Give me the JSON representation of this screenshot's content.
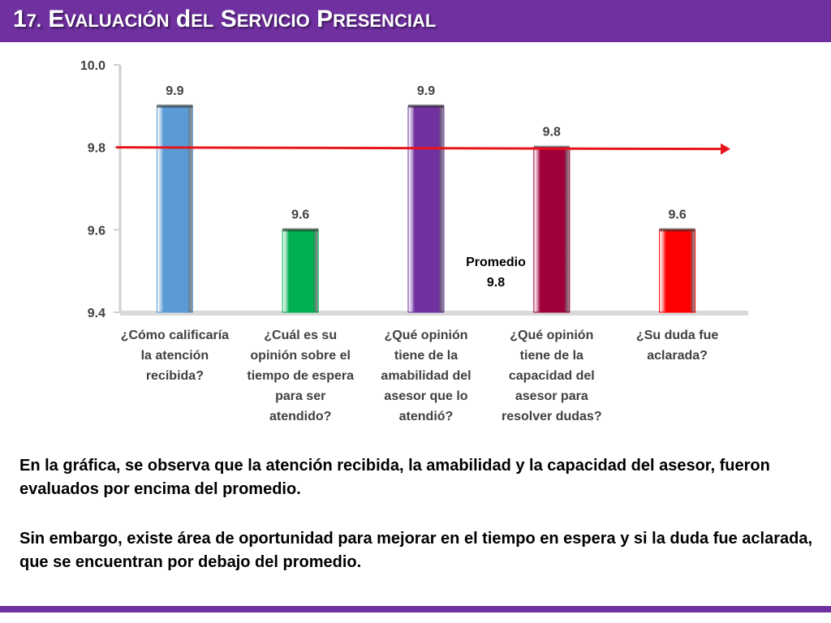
{
  "slide": {
    "title": "17. Evaluación del Servicio Presencial",
    "paragraph1": "En la gráfica, se observa que la atención recibida, la amabilidad y la capacidad del asesor, fueron evaluados por encima del promedio.",
    "paragraph2": "Sin embargo, existe área de oportunidad para mejorar en el tiempo en espera y si la duda fue aclarada, que se encuentran por debajo del promedio."
  },
  "colors": {
    "accent": "#7030a0",
    "average_line": "#e8141c",
    "bars": [
      "#5b9bd5",
      "#00b050",
      "#7030a0",
      "#a0003a",
      "#ff0000"
    ]
  },
  "chart_data": {
    "type": "bar",
    "categories": [
      "¿Cómo calificaría la atención recibida?",
      "¿Cuál es su opinión sobre el tiempo de espera para ser atendido?",
      "¿Qué opinión tiene de la amabilidad del asesor que lo atendió?",
      "¿Qué opinión tiene de la capacidad del asesor para resolver dudas?",
      "¿Su duda fue aclarada?"
    ],
    "category_lines": [
      [
        "¿Cómo calificaría",
        "la atención",
        "recibida?"
      ],
      [
        "¿Cuál es su",
        "opinión sobre el",
        "tiempo de espera",
        "para ser",
        "atendido?"
      ],
      [
        "¿Qué opinión",
        "tiene de la",
        "amabilidad del",
        "asesor que lo",
        "atendió?"
      ],
      [
        "¿Qué opinión",
        "tiene de la",
        "capacidad del",
        "asesor para",
        "resolver dudas?"
      ],
      [
        "¿Su duda fue",
        "aclarada?"
      ]
    ],
    "values": [
      9.9,
      9.6,
      9.9,
      9.8,
      9.6
    ],
    "value_labels": [
      "9.9",
      "9.6",
      "9.9",
      "9.8",
      "9.6"
    ],
    "ylim": [
      9.4,
      10.0
    ],
    "yticks": [
      9.4,
      9.6,
      9.8,
      10.0
    ],
    "ytick_labels": [
      "9.4",
      "9.6",
      "9.8",
      "10.0"
    ],
    "average": 9.8,
    "average_label": [
      "Promedio",
      "9.8"
    ],
    "grid": false
  }
}
